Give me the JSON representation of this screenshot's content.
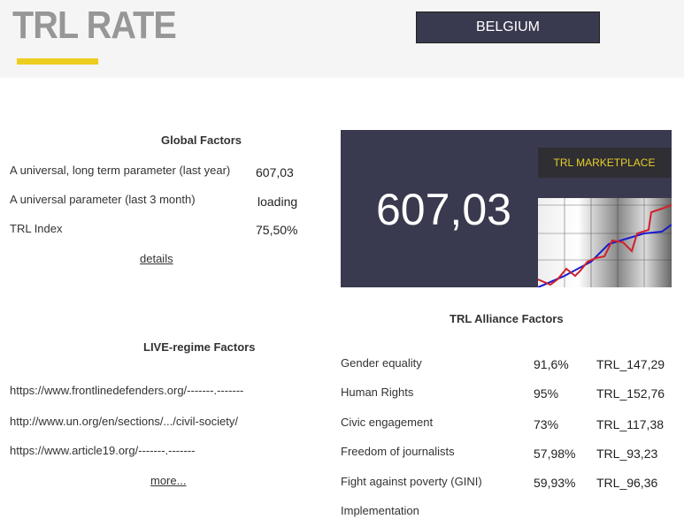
{
  "header": {
    "title": "TRL RATE",
    "country_button": "BELGIUM",
    "accent": "#edcd1f"
  },
  "global": {
    "title": "Global Factors",
    "rows": [
      {
        "label": "A universal, long term parameter (last year)",
        "value": "607,03"
      },
      {
        "label": "A universal parameter (last 3 month)",
        "value": "loading"
      },
      {
        "label": "TRL Index",
        "value": "75,50%"
      }
    ],
    "details_link": "details"
  },
  "panel": {
    "value": "607,03",
    "marketplace_label": "TRL MARKETPLACE",
    "bg": "#393a4f"
  },
  "live": {
    "title": "LIVE-regime Factors",
    "links": [
      "https://www.frontlinedefenders.org/-------.-------",
      "http://www.un.org/en/sections/.../civil-society/",
      "https://www.article19.org/-------.-------"
    ],
    "more_link": "more..."
  },
  "alliance": {
    "title": "TRL Alliance Factors",
    "rows": [
      {
        "label": "Gender equality",
        "pct": "91,6%",
        "trl": "TRL_147,29"
      },
      {
        "label": "Human Rights",
        "pct": "95%",
        "trl": "TRL_152,76"
      },
      {
        "label": "Civic engagement",
        "pct": "73%",
        "trl": "TRL_117,38"
      },
      {
        "label": "Freedom of journalists",
        "pct": "57,98%",
        "trl": "TRL_93,23"
      },
      {
        "label": "Fight against poverty (GINI)",
        "pct": "59,93%",
        "trl": "TRL_96,36"
      },
      {
        "label": "Implementation",
        "pct": "",
        "trl": ""
      }
    ]
  }
}
